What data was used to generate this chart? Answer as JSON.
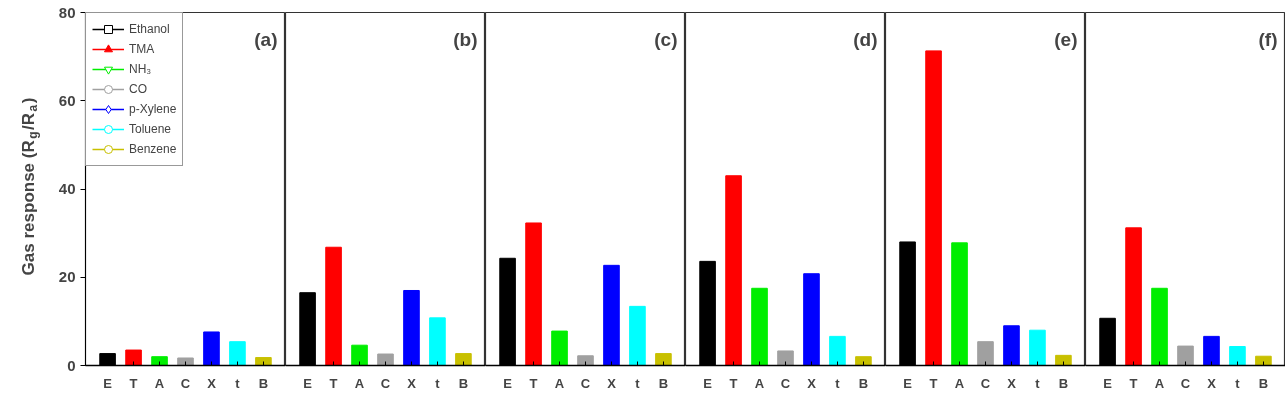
{
  "chart_data": [
    {
      "type": "bar",
      "ylabel": "Gas response (R$_{g}$/R$_{a}$)",
      "annotations": [
        "(a)"
      ],
      "categories": [
        "E",
        "T",
        "A",
        "C",
        "X",
        "t",
        "B"
      ],
      "ylim": [
        0,
        80
      ],
      "yticks": [
        0,
        20,
        40,
        60,
        80
      ],
      "grid": false,
      "legend": "top left",
      "series": [
        {
          "name": "Ethanol",
          "color": "#000000",
          "marker": "square",
          "values": [
            2.7,
            null,
            null,
            null,
            null,
            null,
            null
          ]
        },
        {
          "name": "TMA",
          "color": "#ff0000",
          "marker": "triangle",
          "values": [
            null,
            3.5,
            null,
            null,
            null,
            null,
            null
          ]
        },
        {
          "name": "NH₃",
          "color": "#00ee00",
          "marker": "inverted_triangle",
          "values": [
            null,
            null,
            2.0,
            null,
            null,
            null,
            null
          ]
        },
        {
          "name": "CO",
          "color": "#a0a0a0",
          "marker": "circle",
          "values": [
            null,
            null,
            null,
            1.7,
            null,
            null,
            null
          ]
        },
        {
          "name": "p-Xylene",
          "color": "#0000ff",
          "marker": "diamond",
          "values": [
            null,
            null,
            null,
            null,
            7.6,
            null,
            null
          ]
        },
        {
          "name": "Toluene",
          "color": "#00ffff",
          "marker": "circle",
          "values": [
            null,
            null,
            null,
            null,
            null,
            5.4,
            null
          ]
        },
        {
          "name": "Benzene",
          "color": "#c8c000",
          "marker": "circle",
          "values": [
            null,
            null,
            null,
            null,
            null,
            null,
            1.8
          ]
        }
      ]
    },
    {
      "type": "bar",
      "annotations": [
        "(b)"
      ],
      "categories": [
        "E",
        "T",
        "A",
        "C",
        "X",
        "t",
        "B"
      ],
      "ylim": [
        0,
        80
      ],
      "yticks": [
        0,
        20,
        40,
        60,
        80
      ],
      "grid": false,
      "tick_labels": "x",
      "values": [
        16.5,
        26.8,
        4.6,
        2.6,
        17.0,
        10.8,
        2.7
      ],
      "colors": [
        "#000000",
        "#ff0000",
        "#00ee00",
        "#a0a0a0",
        "#0000ff",
        "#00ffff",
        "#c8c000"
      ]
    },
    {
      "type": "bar",
      "annotations": [
        "(c)"
      ],
      "categories": [
        "E",
        "T",
        "A",
        "C",
        "X",
        "t",
        "B"
      ],
      "ylim": [
        0,
        80
      ],
      "yticks": [
        0,
        20,
        40,
        60,
        80
      ],
      "grid": false,
      "tick_labels": "x",
      "values": [
        24.3,
        32.3,
        7.8,
        2.2,
        22.7,
        13.4,
        2.7
      ],
      "colors": [
        "#000000",
        "#ff0000",
        "#00ee00",
        "#a0a0a0",
        "#0000ff",
        "#00ffff",
        "#c8c000"
      ]
    },
    {
      "type": "bar",
      "annotations": [
        "(d)"
      ],
      "categories": [
        "E",
        "T",
        "A",
        "C",
        "X",
        "t",
        "B"
      ],
      "ylim": [
        0,
        80
      ],
      "yticks": [
        0,
        20,
        40,
        60,
        80
      ],
      "grid": false,
      "tick_labels": "x",
      "values": [
        23.6,
        43.0,
        17.5,
        3.3,
        20.8,
        6.6,
        2.0
      ],
      "colors": [
        "#000000",
        "#ff0000",
        "#00ee00",
        "#a0a0a0",
        "#0000ff",
        "#00ffff",
        "#c8c000"
      ]
    },
    {
      "type": "bar",
      "annotations": [
        "(e)"
      ],
      "categories": [
        "E",
        "T",
        "A",
        "C",
        "X",
        "t",
        "B"
      ],
      "ylim": [
        0,
        80
      ],
      "yticks": [
        0,
        20,
        40,
        60,
        80
      ],
      "grid": false,
      "tick_labels": "x",
      "values": [
        28.0,
        71.3,
        27.8,
        5.4,
        9.0,
        8.0,
        2.3
      ],
      "colors": [
        "#000000",
        "#ff0000",
        "#00ee00",
        "#a0a0a0",
        "#0000ff",
        "#00ffff",
        "#c8c000"
      ]
    },
    {
      "type": "bar",
      "annotations": [
        "(f)"
      ],
      "categories": [
        "E",
        "T",
        "A",
        "C",
        "X",
        "t",
        "B"
      ],
      "ylim": [
        0,
        80
      ],
      "yticks": [
        0,
        20,
        40,
        60,
        80
      ],
      "grid": false,
      "tick_labels": "x",
      "values": [
        10.7,
        31.2,
        17.5,
        4.4,
        6.6,
        4.3,
        2.1
      ],
      "colors": [
        "#000000",
        "#ff0000",
        "#00ee00",
        "#a0a0a0",
        "#0000ff",
        "#00ffff",
        "#c8c000"
      ]
    }
  ]
}
